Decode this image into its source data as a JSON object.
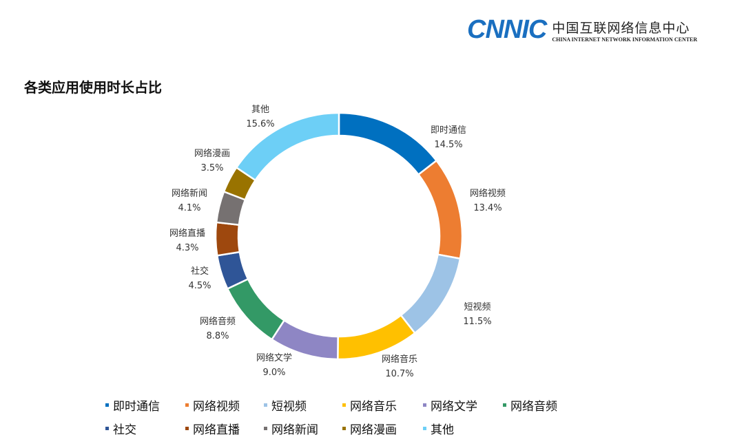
{
  "logo": {
    "mark": "CNNIC",
    "cn": "中国互联网络信息中心",
    "en": "CHINA INTERNET NETWORK INFORMATION CENTER"
  },
  "chart_data": {
    "type": "pie",
    "style": "donut",
    "title": "各类应用使用时长占比",
    "unit": "%",
    "legend": "bottom",
    "categories": [
      "即时通信",
      "网络视频",
      "短视频",
      "网络音乐",
      "网络文学",
      "网络音频",
      "社交",
      "网络直播",
      "网络新闻",
      "网络漫画",
      "其他"
    ],
    "values": [
      14.5,
      13.4,
      11.5,
      10.7,
      9.0,
      8.8,
      4.5,
      4.3,
      4.1,
      3.5,
      15.6
    ],
    "labels": [
      "14.5%",
      "13.4%",
      "11.5%",
      "10.7%",
      "9.0%",
      "8.8%",
      "4.5%",
      "4.3%",
      "4.1%",
      "3.5%",
      "15.6%"
    ],
    "colors": [
      "#0070C0",
      "#ED7D31",
      "#9DC3E6",
      "#FFC000",
      "#8E86C4",
      "#339966",
      "#2F5597",
      "#9E480E",
      "#767171",
      "#997300",
      "#6DCFF6"
    ]
  }
}
